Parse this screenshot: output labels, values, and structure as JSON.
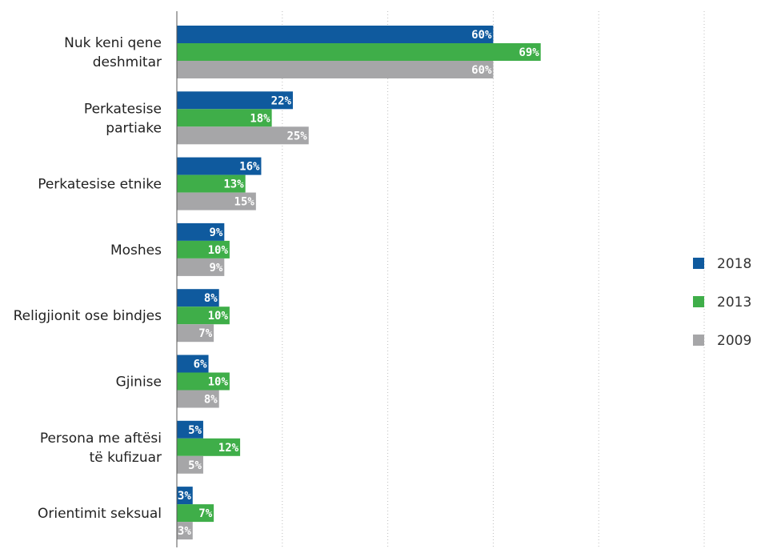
{
  "chart_data": {
    "type": "bar",
    "orientation": "horizontal",
    "categories": [
      "Nuk keni qene deshmitar",
      "Perkatesise partiake",
      "Perkatesise etnike",
      "Moshes",
      "Religjionit ose bindjes",
      "Gjinise",
      "Persona me aftësi të kufizuar",
      "Orientimit seksual"
    ],
    "series": [
      {
        "name": "2018",
        "color": "#0f5a9e",
        "values": [
          60,
          22,
          16,
          9,
          8,
          6,
          5,
          3
        ],
        "labels": [
          "60%",
          "22%",
          "16%",
          "9%",
          "8%",
          "6%",
          "5%",
          "3%"
        ]
      },
      {
        "name": "2013",
        "color": "#3fae49",
        "values": [
          69,
          18,
          13,
          10,
          10,
          10,
          12,
          7
        ],
        "labels": [
          "69%",
          "18%",
          "13%",
          "10%",
          "10%",
          "10%",
          "12%",
          "7%"
        ]
      },
      {
        "name": "2009",
        "color": "#a6a6a8",
        "values": [
          60,
          25,
          15,
          9,
          7,
          8,
          5,
          3
        ],
        "labels": [
          "60%",
          "25%",
          "15%",
          "9%",
          "7%",
          "8%",
          "5%",
          "3%"
        ]
      }
    ],
    "xlim": [
      0,
      100
    ],
    "grid": true,
    "legend_position": "right",
    "title": "",
    "xlabel": "",
    "ylabel": ""
  }
}
